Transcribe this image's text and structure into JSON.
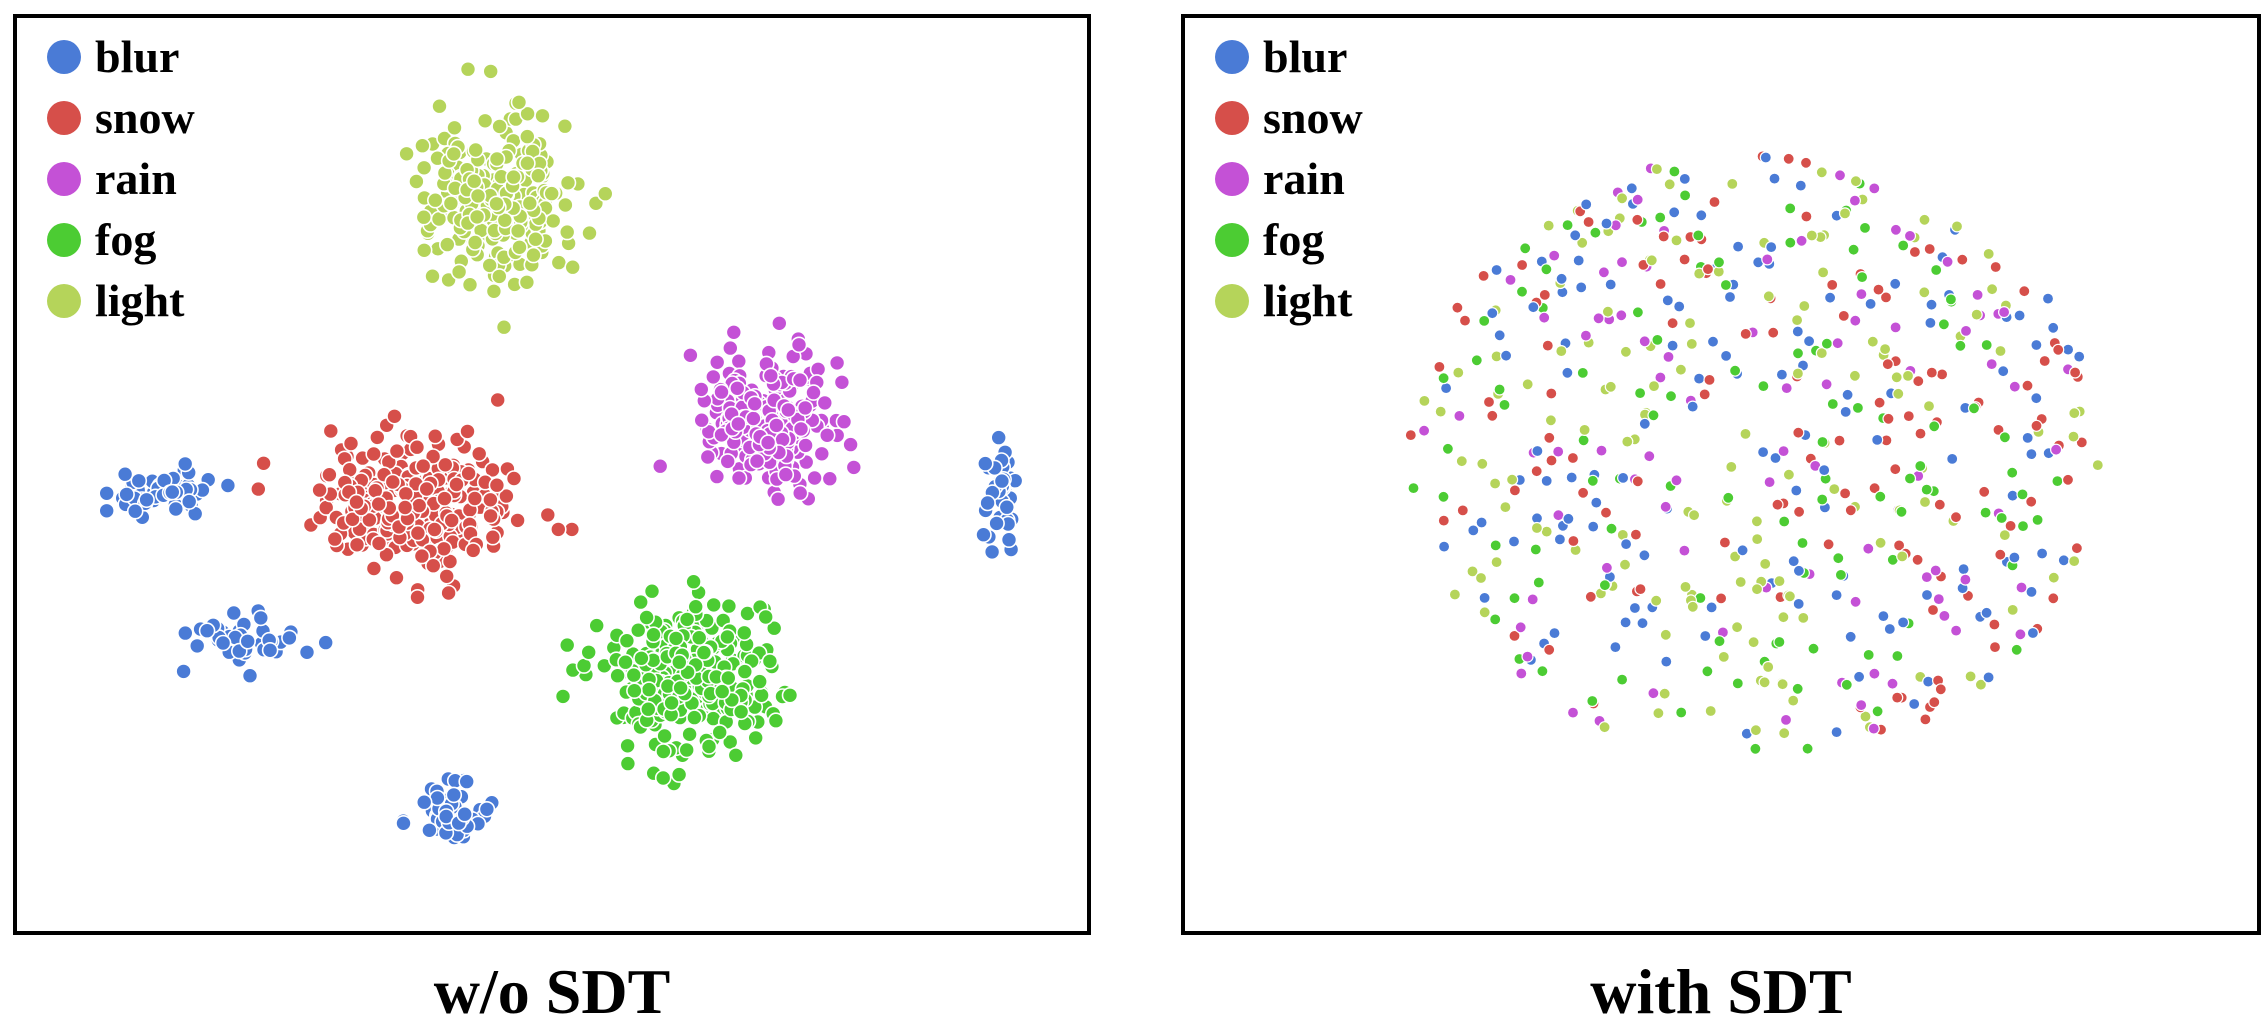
{
  "categories": [
    {
      "name": "blur",
      "color": "#4a7bd6"
    },
    {
      "name": "snow",
      "color": "#d64f4a"
    },
    {
      "name": "rain",
      "color": "#c451d6"
    },
    {
      "name": "fog",
      "color": "#4ccc33"
    },
    {
      "name": "light",
      "color": "#b5d45a"
    }
  ],
  "chart_data": [
    {
      "type": "scatter",
      "title": "w/o SDT",
      "xlabel": "",
      "ylabel": "",
      "xlim": [
        0,
        100
      ],
      "ylim": [
        0,
        100
      ],
      "grid": false,
      "legend_position": "top-left",
      "clusters": [
        {
          "series": "light",
          "center": [
            45,
            80
          ],
          "spread": [
            6,
            8
          ],
          "count": 260
        },
        {
          "series": "rain",
          "center": [
            70,
            56
          ],
          "spread": [
            5,
            7
          ],
          "count": 240
        },
        {
          "series": "snow",
          "center": [
            37,
            47
          ],
          "spread": [
            8,
            6
          ],
          "count": 300
        },
        {
          "series": "fog",
          "center": [
            63,
            28
          ],
          "spread": [
            7,
            7
          ],
          "count": 320
        },
        {
          "series": "blur",
          "center": [
            13,
            48
          ],
          "spread": [
            5,
            2
          ],
          "count": 55
        },
        {
          "series": "blur",
          "center": [
            21,
            32
          ],
          "spread": [
            5,
            2.5
          ],
          "count": 45
        },
        {
          "series": "blur",
          "center": [
            41,
            13
          ],
          "spread": [
            3,
            3
          ],
          "count": 55
        },
        {
          "series": "blur",
          "center": [
            92,
            47
          ],
          "spread": [
            1.5,
            5
          ],
          "count": 40
        }
      ]
    },
    {
      "type": "scatter",
      "title": "with SDT",
      "xlabel": "",
      "ylabel": "",
      "xlim": [
        0,
        100
      ],
      "ylim": [
        0,
        100
      ],
      "grid": false,
      "legend_position": "top-left",
      "clusters": [
        {
          "series": "blur",
          "center": [
            53,
            52
          ],
          "spread": [
            28,
            29
          ],
          "count": 140
        },
        {
          "series": "snow",
          "center": [
            53,
            52
          ],
          "spread": [
            28,
            29
          ],
          "count": 130
        },
        {
          "series": "rain",
          "center": [
            53,
            52
          ],
          "spread": [
            28,
            29
          ],
          "count": 90
        },
        {
          "series": "fog",
          "center": [
            53,
            52
          ],
          "spread": [
            28,
            29
          ],
          "count": 110
        },
        {
          "series": "light",
          "center": [
            53,
            52
          ],
          "spread": [
            28,
            29
          ],
          "count": 150
        }
      ]
    }
  ]
}
